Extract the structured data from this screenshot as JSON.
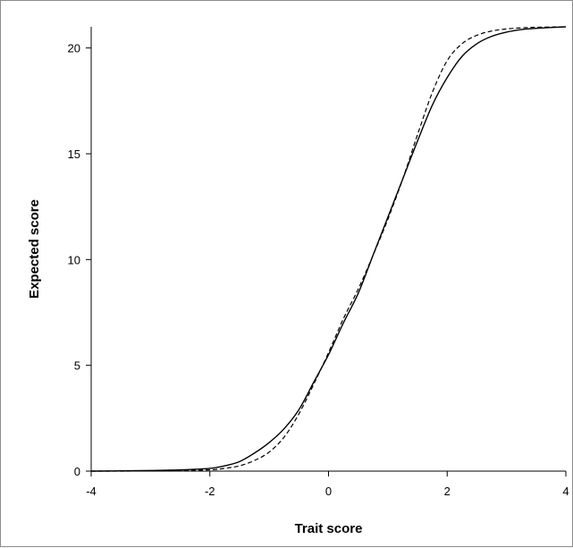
{
  "chart_data": {
    "type": "line",
    "title": "",
    "xlabel": "Trait score",
    "ylabel": "Expected score",
    "xlim": [
      -4,
      4
    ],
    "ylim": [
      0,
      21
    ],
    "x_ticks": [
      -4,
      -2,
      0,
      2,
      4
    ],
    "y_ticks": [
      0,
      5,
      10,
      15,
      20
    ],
    "x_tick_labels": [
      "-4",
      "-2",
      "0",
      "2",
      "4"
    ],
    "y_tick_labels": [
      "0",
      "5",
      "10",
      "15",
      "20"
    ],
    "grid": false,
    "legend": "none",
    "series": [
      {
        "style": "solid",
        "color": "#000000",
        "x": [
          -4,
          -3.5,
          -3,
          -2.5,
          -2,
          -1.75,
          -1.5,
          -1.25,
          -1,
          -0.75,
          -0.5,
          -0.25,
          0,
          0.25,
          0.5,
          0.75,
          1,
          1.25,
          1.5,
          1.75,
          2,
          2.25,
          2.5,
          2.75,
          3,
          3.25,
          3.5,
          4
        ],
        "y": [
          0,
          0.01,
          0.03,
          0.06,
          0.13,
          0.25,
          0.45,
          0.85,
          1.35,
          2.0,
          2.9,
          4.2,
          5.5,
          7.0,
          8.4,
          10.2,
          12.0,
          13.8,
          15.6,
          17.3,
          18.6,
          19.6,
          20.2,
          20.55,
          20.75,
          20.87,
          20.93,
          21.0
        ]
      },
      {
        "style": "dashed",
        "color": "#000000",
        "x": [
          -4,
          -3.5,
          -3,
          -2.5,
          -2,
          -1.75,
          -1.5,
          -1.25,
          -1,
          -0.75,
          -0.5,
          -0.25,
          0,
          0.25,
          0.5,
          0.75,
          1,
          1.25,
          1.5,
          1.75,
          2,
          2.25,
          2.5,
          2.75,
          3,
          3.25,
          3.5,
          4
        ],
        "y": [
          0,
          0,
          0.01,
          0.03,
          0.06,
          0.13,
          0.25,
          0.5,
          0.9,
          1.6,
          2.7,
          4.1,
          5.6,
          7.2,
          8.6,
          10.2,
          11.9,
          13.8,
          15.9,
          17.9,
          19.4,
          20.2,
          20.6,
          20.8,
          20.9,
          20.95,
          20.98,
          21.0
        ]
      }
    ]
  }
}
